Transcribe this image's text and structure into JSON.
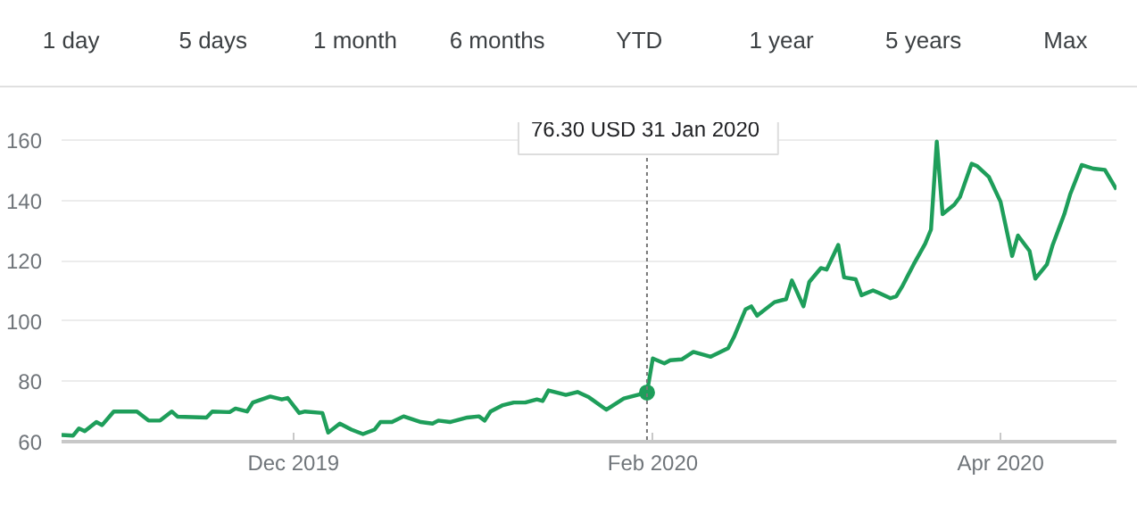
{
  "chart_data": {
    "type": "line",
    "annotations": [
      "1 day",
      "5 days",
      "1 month",
      "6 months",
      "YTD",
      "1 year",
      "5 years",
      "Max"
    ],
    "ref_lines": [
      {
        "axis": "x",
        "value": "2020-01-31",
        "label": "76.30 USD  31 Jan 2020",
        "color": "#777777",
        "line_style": "dotted"
      }
    ],
    "x": [
      "2019-10-22",
      "2019-10-24",
      "2019-10-25",
      "2019-10-26",
      "2019-10-28",
      "2019-10-29",
      "2019-10-31",
      "2019-11-02",
      "2019-11-04",
      "2019-11-06",
      "2019-11-08",
      "2019-11-10",
      "2019-11-11",
      "2019-11-16",
      "2019-11-17",
      "2019-11-20",
      "2019-11-21",
      "2019-11-23",
      "2019-11-24",
      "2019-11-27",
      "2019-11-29",
      "2019-11-30",
      "2019-12-02",
      "2019-12-03",
      "2019-12-06",
      "2019-12-07",
      "2019-12-09",
      "2019-12-11",
      "2019-12-13",
      "2019-12-15",
      "2019-12-16",
      "2019-12-18",
      "2019-12-20",
      "2019-12-23",
      "2019-12-25",
      "2019-12-26",
      "2019-12-28",
      "2019-12-29",
      "2019-12-31",
      "2020-01-02",
      "2020-01-03",
      "2020-01-04",
      "2020-01-06",
      "2020-01-08",
      "2020-01-10",
      "2020-01-12",
      "2020-01-13",
      "2020-01-14",
      "2020-01-16",
      "2020-01-17",
      "2020-01-19",
      "2020-01-21",
      "2020-01-24",
      "2020-01-27",
      "2020-01-31",
      "2020-02-01",
      "2020-02-03",
      "2020-02-04",
      "2020-02-06",
      "2020-02-08",
      "2020-02-11",
      "2020-02-14",
      "2020-02-15",
      "2020-02-17",
      "2020-02-18",
      "2020-02-19",
      "2020-02-22",
      "2020-02-24",
      "2020-02-25",
      "2020-02-27",
      "2020-02-28",
      "2020-03-01",
      "2020-03-02",
      "2020-03-04",
      "2020-03-05",
      "2020-03-07",
      "2020-03-08",
      "2020-03-10",
      "2020-03-11",
      "2020-03-13",
      "2020-03-14",
      "2020-03-15",
      "2020-03-17",
      "2020-03-19",
      "2020-03-20",
      "2020-03-21",
      "2020-03-22",
      "2020-03-24",
      "2020-03-25",
      "2020-03-27",
      "2020-03-28",
      "2020-03-30",
      "2020-04-01",
      "2020-04-03",
      "2020-04-04",
      "2020-04-06",
      "2020-04-07",
      "2020-04-09",
      "2020-04-10",
      "2020-04-12",
      "2020-04-13",
      "2020-04-15",
      "2020-04-17",
      "2020-04-19",
      "2020-04-21"
    ],
    "series": [
      {
        "color": "#1e9e5a",
        "values": [
          62.2,
          62,
          64.4,
          63.5,
          66.5,
          65.5,
          70,
          70,
          70,
          67,
          67,
          70,
          68.3,
          68,
          70,
          69.8,
          71,
          70,
          73,
          75,
          74,
          74.5,
          69.5,
          70,
          69.5,
          63,
          66,
          64,
          62.5,
          64,
          66.5,
          66.5,
          68.4,
          66.5,
          66,
          67,
          66.5,
          67,
          68,
          68.4,
          67,
          70,
          72,
          73,
          73,
          74,
          73.5,
          77,
          76,
          75.5,
          76.5,
          74.7,
          70.6,
          74.3,
          76.3,
          87.6,
          86,
          87,
          87.3,
          89.8,
          88.2,
          91,
          94.7,
          103.9,
          104.9,
          101.8,
          106.3,
          107.3,
          113.5,
          104.9,
          113,
          117.6,
          117.1,
          125.3,
          114.5,
          113.9,
          108.6,
          110.2,
          109.4,
          107.6,
          108.2,
          111.4,
          118.8,
          125.7,
          130.4,
          159.6,
          135.5,
          138.6,
          141.2,
          152.2,
          151.4,
          147.8,
          139.6,
          121.6,
          128.4,
          123.3,
          114.1,
          118.8,
          125.3,
          135.5,
          142,
          151.8,
          150.6,
          150.2,
          143.7
        ]
      }
    ],
    "xlim": [
      "2019-10-22",
      "2020-04-21"
    ],
    "xticks": [
      {
        "value": "2019-12-01",
        "label": "Dec 2019"
      },
      {
        "value": "2020-02-01",
        "label": "Feb 2020"
      },
      {
        "value": "2020-04-01",
        "label": "Apr 2020"
      }
    ],
    "ylim": [
      60,
      166
    ],
    "yticks": [
      60,
      80,
      100,
      120,
      140,
      160
    ],
    "grid": "y",
    "line_style": "solid"
  }
}
